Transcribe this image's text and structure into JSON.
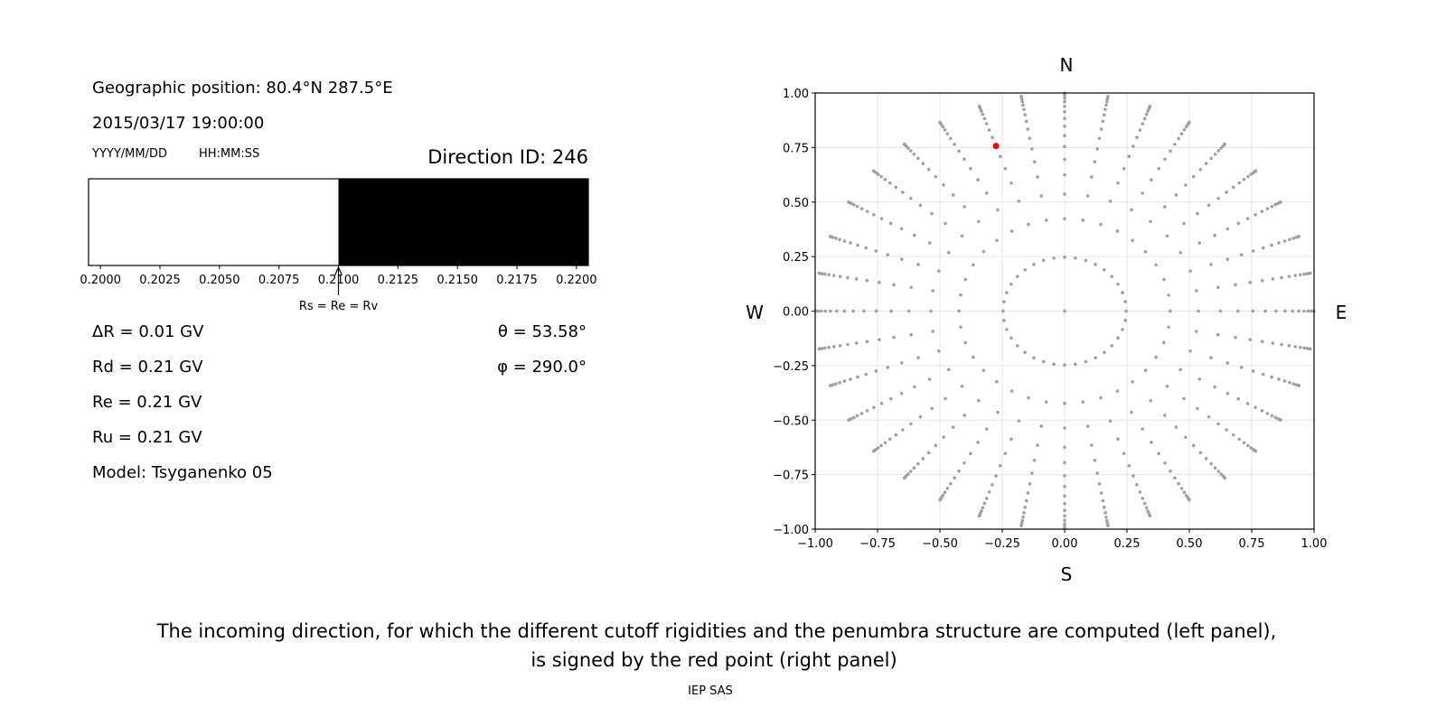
{
  "left_panel": {
    "geo_position": "Geographic position: 80.4°N 287.5°E",
    "datetime": "2015/03/17 19:00:00",
    "date_format": "YYYY/MM/DD",
    "time_format": "HH:MM:SS",
    "direction_id": "Direction ID: 246",
    "delta_r": "ΔR = 0.01 GV",
    "rd": "Rd = 0.21 GV",
    "re": "Re = 0.21 GV",
    "ru": "Ru = 0.21 GV",
    "model": "Model: Tsyganenko 05",
    "theta": "θ = 53.58°",
    "phi": "φ = 290.0°"
  },
  "caption": {
    "line1": "The incoming direction, for which the different cutoff rigidities and the penumbra structure are computed (left panel),",
    "line2": "is signed by the red point (right panel)",
    "credit": "IEP SAS"
  },
  "chart_data": [
    {
      "type": "bar",
      "xlim": [
        0.1995,
        0.2205
      ],
      "xticks": [
        "0.2000",
        "0.2025",
        "0.2050",
        "0.2075",
        "0.2100",
        "0.2125",
        "0.2150",
        "0.2175",
        "0.2200"
      ],
      "segments": [
        {
          "from": 0.1995,
          "to": 0.21,
          "color": "#ffffff"
        },
        {
          "from": 0.21,
          "to": 0.2205,
          "color": "#000000"
        }
      ],
      "annotation": {
        "text": "Rs = Re = Rv",
        "x": 0.21
      },
      "grid": false
    },
    {
      "type": "scatter",
      "xlim": [
        -1,
        1
      ],
      "ylim": [
        -1,
        1
      ],
      "xticks": [
        "−1.00",
        "−0.75",
        "−0.50",
        "−0.25",
        "0.00",
        "0.25",
        "0.50",
        "0.75",
        "1.00"
      ],
      "yticks": [
        "−1.00",
        "−0.75",
        "−0.50",
        "−0.25",
        "0.00",
        "0.25",
        "0.50",
        "0.75",
        "1.00"
      ],
      "compass": {
        "north": "N",
        "south": "S",
        "west": "W",
        "east": "E"
      },
      "grid": true,
      "grid_cos_zenith": [
        0.969,
        0.906,
        0.844,
        0.781,
        0.719,
        0.656,
        0.594,
        0.531,
        0.469,
        0.406,
        0.344,
        0.281,
        0.219,
        0.156,
        0.094,
        0.031
      ],
      "grid_azimuth_step_deg": 10,
      "grid_point_color": "#a0a0a0",
      "selected": {
        "theta_deg": 53.58,
        "phi_deg": 290.0,
        "x": -0.275,
        "y": 0.757,
        "color": "#ff0000"
      }
    }
  ]
}
